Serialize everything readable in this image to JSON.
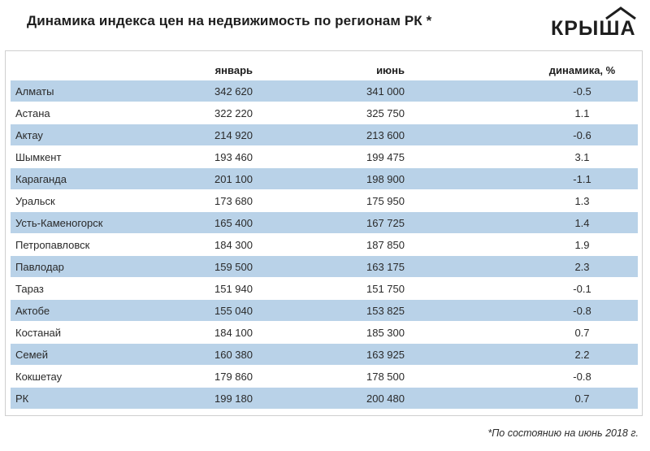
{
  "title": "Динамика индекса цен на недвижимость по регионам РК *",
  "logo": {
    "text": "КРЫША"
  },
  "footnote": "*По состоянию на июнь 2018 г.",
  "colors": {
    "row_shade": "#b9d2e8",
    "text": "#1e1e1e"
  },
  "chart_data": {
    "type": "table",
    "title": "Динамика индекса цен на недвижимость по регионам РК *",
    "columns": [
      "",
      "январь",
      "июнь",
      "динамика, %"
    ],
    "rows": [
      {
        "region": "Алматы",
        "jan": "342 620",
        "jun": "341 000",
        "dyn": "-0.5"
      },
      {
        "region": "Астана",
        "jan": "322 220",
        "jun": "325 750",
        "dyn": "1.1"
      },
      {
        "region": "Актау",
        "jan": "214 920",
        "jun": "213 600",
        "dyn": "-0.6"
      },
      {
        "region": "Шымкент",
        "jan": "193 460",
        "jun": "199 475",
        "dyn": "3.1"
      },
      {
        "region": "Караганда",
        "jan": "201 100",
        "jun": "198 900",
        "dyn": "-1.1"
      },
      {
        "region": "Уральск",
        "jan": "173 680",
        "jun": "175 950",
        "dyn": "1.3"
      },
      {
        "region": "Усть-Каменогорск",
        "jan": "165 400",
        "jun": "167 725",
        "dyn": "1.4"
      },
      {
        "region": "Петропавловск",
        "jan": "184 300",
        "jun": "187 850",
        "dyn": "1.9"
      },
      {
        "region": "Павлодар",
        "jan": "159 500",
        "jun": "163 175",
        "dyn": "2.3"
      },
      {
        "region": "Тараз",
        "jan": "151 940",
        "jun": "151 750",
        "dyn": "-0.1"
      },
      {
        "region": "Актобе",
        "jan": "155 040",
        "jun": "153 825",
        "dyn": "-0.8"
      },
      {
        "region": "Костанай",
        "jan": "184 100",
        "jun": "185 300",
        "dyn": "0.7"
      },
      {
        "region": "Семей",
        "jan": "160 380",
        "jun": "163 925",
        "dyn": "2.2"
      },
      {
        "region": "Кокшетау",
        "jan": "179 860",
        "jun": "178 500",
        "dyn": "-0.8"
      },
      {
        "region": "РК",
        "jan": "199 180",
        "jun": "200 480",
        "dyn": "0.7"
      }
    ]
  }
}
